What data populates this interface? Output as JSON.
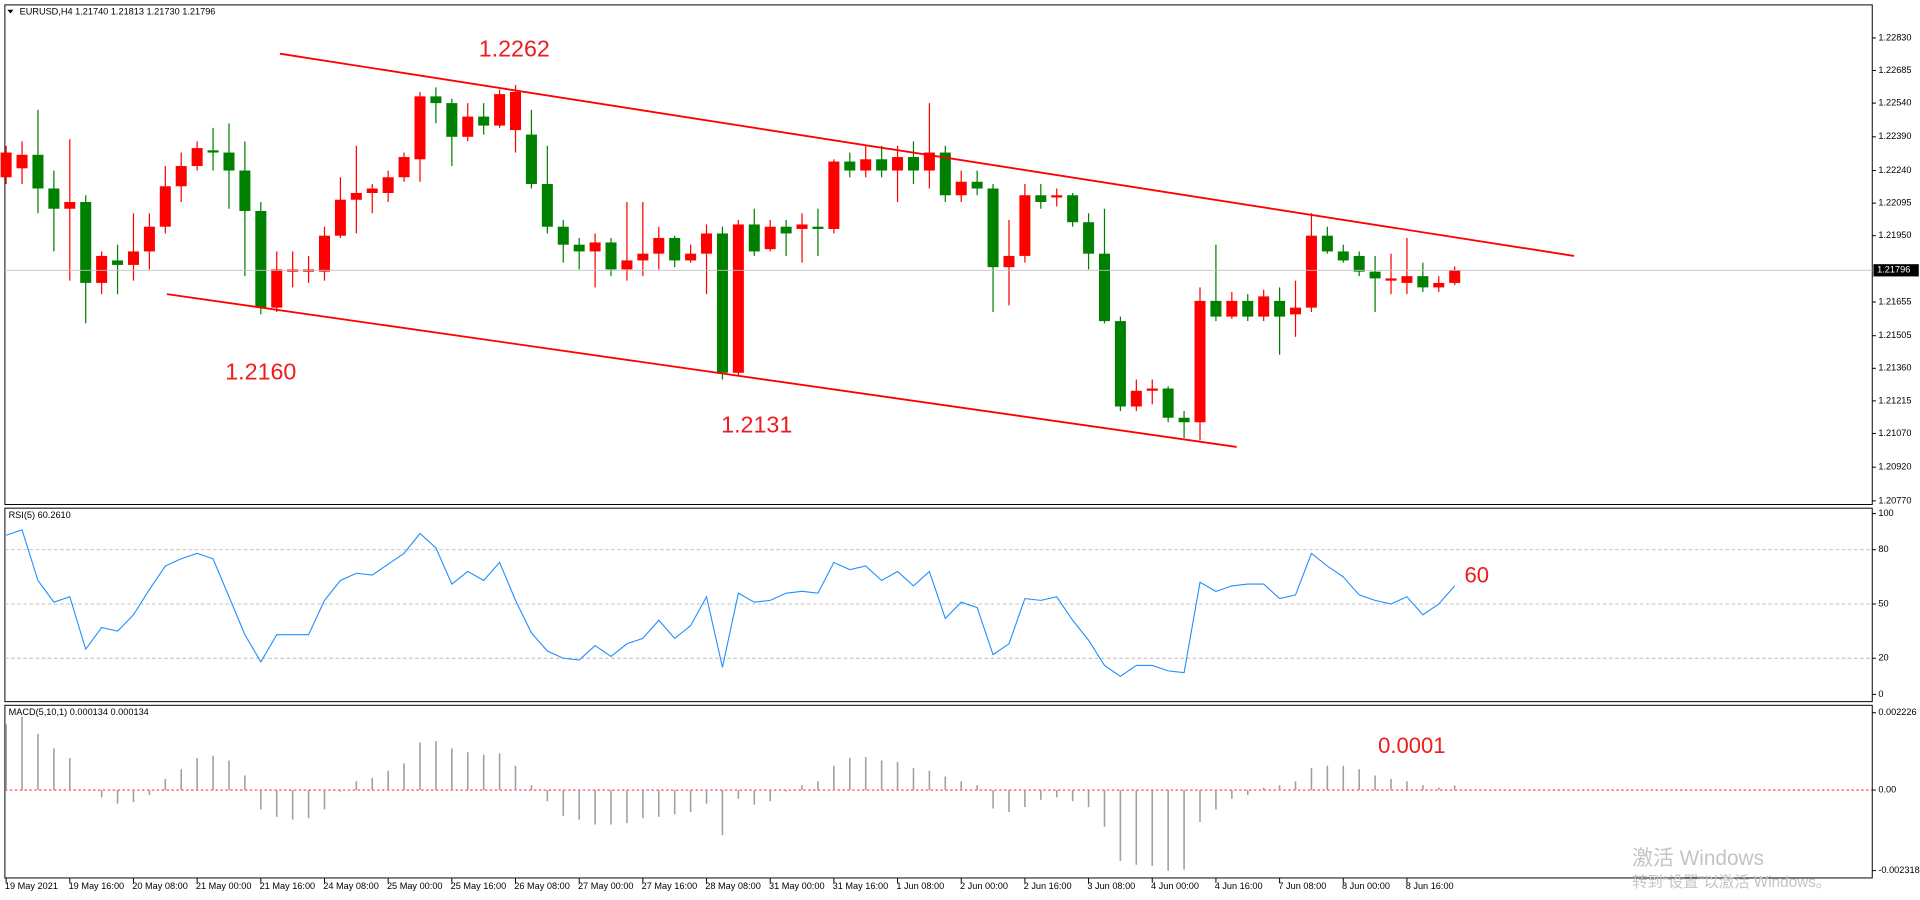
{
  "chart_data": [
    {
      "type": "candlestick",
      "title": "EURUSD,H4  1.21740 1.21813 1.21730 1.21796",
      "categories": [
        "19 May 2021",
        null,
        null,
        null,
        "19 May 16:00",
        null,
        null,
        null,
        "20 May 08:00",
        null,
        null,
        null,
        "21 May 00:00",
        null,
        null,
        null,
        "21 May 16:00",
        null,
        null,
        null,
        "24 May 08:00",
        null,
        null,
        null,
        "25 May 00:00",
        null,
        null,
        null,
        "25 May 16:00",
        null,
        null,
        null,
        "26 May 08:00",
        null,
        null,
        null,
        "27 May 00:00",
        null,
        null,
        null,
        "27 May 16:00",
        null,
        null,
        null,
        "28 May 08:00",
        null,
        null,
        null,
        "31 May 00:00",
        null,
        null,
        null,
        "31 May 16:00",
        null,
        null,
        null,
        "1 Jun 08:00",
        null,
        null,
        null,
        "2 Jun 00:00",
        null,
        null,
        null,
        "2 Jun 16:00",
        null,
        null,
        null,
        "3 Jun 08:00",
        null,
        null,
        null,
        "4 Jun 00:00",
        null,
        null,
        null,
        "4 Jun 16:00",
        null,
        null,
        null,
        "7 Jun 08:00",
        null,
        null,
        null,
        "8 Jun 00:00",
        null,
        null,
        null,
        "8 Jun 16:00",
        null,
        null,
        null
      ],
      "open": [
        1.2221,
        1.2225,
        1.2231,
        1.2216,
        1.2207,
        1.221,
        1.2174,
        1.2184,
        1.2182,
        1.2188,
        1.2199,
        1.2217,
        1.2226,
        1.2233,
        1.2232,
        1.2224,
        1.2206,
        1.2163,
        1.2179,
        1.2179,
        1.2179,
        1.2195,
        1.2211,
        1.2214,
        1.2214,
        1.2221,
        1.2229,
        1.2257,
        1.2254,
        1.2239,
        1.2248,
        1.2244,
        1.2242,
        1.224,
        1.2218,
        1.2199,
        1.2191,
        1.2188,
        1.2192,
        1.218,
        1.2184,
        1.2187,
        1.2194,
        1.2184,
        1.2187,
        1.2196,
        1.2134,
        1.22,
        1.2189,
        1.2199,
        1.2198,
        1.2199,
        1.2198,
        1.2228,
        1.2224,
        1.2229,
        1.2224,
        1.223,
        1.2224,
        1.2232,
        1.2213,
        1.2219,
        1.2216,
        1.2181,
        1.2186,
        1.2213,
        1.2212,
        1.2213,
        1.2201,
        1.2187,
        1.2157,
        1.2119,
        1.2126,
        1.2127,
        1.2114,
        1.2112,
        1.2166,
        1.2159,
        1.2166,
        1.2159,
        1.2166,
        1.216,
        1.2163,
        1.2195,
        1.2188,
        1.2186,
        1.2179,
        1.2175,
        1.2174,
        1.2177,
        1.2172,
        1.2174
      ],
      "high": [
        1.2235,
        1.2237,
        1.2251,
        1.2224,
        1.2238,
        1.2213,
        1.2188,
        1.2191,
        1.2205,
        1.2205,
        1.2226,
        1.2232,
        1.2237,
        1.2243,
        1.2245,
        1.2237,
        1.221,
        1.2188,
        1.2188,
        1.2186,
        1.2199,
        1.2221,
        1.2235,
        1.2218,
        1.2224,
        1.2232,
        1.2259,
        1.2261,
        1.2256,
        1.2254,
        1.2254,
        1.226,
        1.2262,
        1.2251,
        1.2235,
        1.2202,
        1.2194,
        1.2196,
        1.2194,
        1.221,
        1.221,
        1.2199,
        1.2195,
        1.2191,
        1.22,
        1.2199,
        1.2202,
        1.2207,
        1.2202,
        1.2202,
        1.2205,
        1.2207,
        1.2229,
        1.2232,
        1.2235,
        1.2235,
        1.2235,
        1.2237,
        1.2254,
        1.2235,
        1.2224,
        1.2224,
        1.2218,
        1.2202,
        1.2218,
        1.2218,
        1.2216,
        1.2214,
        1.2205,
        1.2207,
        1.2159,
        1.2131,
        1.2131,
        1.2128,
        1.2117,
        1.2172,
        1.2191,
        1.217,
        1.2169,
        1.2171,
        1.2172,
        1.2175,
        1.2205,
        1.2199,
        1.2191,
        1.2188,
        1.2186,
        1.2187,
        1.2194,
        1.2183,
        1.2177,
        1.21813
      ],
      "low": [
        1.2218,
        1.2218,
        1.2205,
        1.2188,
        1.2175,
        1.2156,
        1.2169,
        1.2169,
        1.2175,
        1.218,
        1.2196,
        1.221,
        1.2224,
        1.2224,
        1.2207,
        1.2177,
        1.216,
        1.2161,
        1.2172,
        1.2174,
        1.2175,
        1.2194,
        1.2196,
        1.2205,
        1.221,
        1.2219,
        1.2219,
        1.2245,
        1.2226,
        1.2237,
        1.224,
        1.2243,
        1.2232,
        1.2216,
        1.2196,
        1.2183,
        1.218,
        1.2172,
        1.2177,
        1.2175,
        1.2177,
        1.218,
        1.2181,
        1.2183,
        1.2169,
        1.2131,
        1.2133,
        1.2186,
        1.2188,
        1.2186,
        1.2183,
        1.2186,
        1.2196,
        1.2221,
        1.2221,
        1.2221,
        1.221,
        1.2218,
        1.2216,
        1.221,
        1.221,
        1.2213,
        1.2161,
        1.2164,
        1.2183,
        1.2207,
        1.2208,
        1.2199,
        1.218,
        1.2156,
        1.2117,
        1.2117,
        1.212,
        1.2112,
        1.2105,
        1.2104,
        1.2157,
        1.2158,
        1.2157,
        1.2157,
        1.2142,
        1.215,
        1.2161,
        1.2187,
        1.2183,
        1.2177,
        1.2161,
        1.2169,
        1.2169,
        1.217,
        1.217,
        1.2173
      ],
      "close": [
        1.2232,
        1.2231,
        1.2216,
        1.2207,
        1.221,
        1.2174,
        1.2186,
        1.2182,
        1.2188,
        1.2199,
        1.2217,
        1.2226,
        1.2234,
        1.2232,
        1.2224,
        1.2206,
        1.2163,
        1.218,
        1.218,
        1.218,
        1.2195,
        1.2211,
        1.2214,
        1.2216,
        1.2221,
        1.223,
        1.2257,
        1.2254,
        1.2239,
        1.2248,
        1.2244,
        1.2258,
        1.2259,
        1.2218,
        1.2199,
        1.2191,
        1.2188,
        1.2192,
        1.218,
        1.2184,
        1.2187,
        1.2194,
        1.2184,
        1.2187,
        1.2196,
        1.2134,
        1.22,
        1.2188,
        1.2199,
        1.2196,
        1.22,
        1.2198,
        1.2228,
        1.2224,
        1.2229,
        1.2224,
        1.223,
        1.2224,
        1.2232,
        1.2213,
        1.2219,
        1.2216,
        1.2181,
        1.2186,
        1.2213,
        1.221,
        1.2213,
        1.2201,
        1.2187,
        1.2157,
        1.2119,
        1.2126,
        1.2127,
        1.2114,
        1.2112,
        1.2166,
        1.2159,
        1.2166,
        1.2159,
        1.2168,
        1.2159,
        1.2163,
        1.2195,
        1.2188,
        1.2184,
        1.2179,
        1.2176,
        1.2176,
        1.2177,
        1.2172,
        1.2174,
        1.21796
      ],
      "up_color": "#ff0000",
      "down_color": "#008000",
      "ylim": [
        1.20754,
        1.22977
      ],
      "yticks": [
        {
          "value": 1.2283,
          "label": "1.22830"
        },
        1.22685,
        {
          "value": 1.2254,
          "label": "1.22540"
        },
        {
          "value": 1.2239,
          "label": "1.22390"
        },
        {
          "value": 1.2224,
          "label": "1.22240"
        },
        1.22095,
        {
          "value": 1.2195,
          "label": "1.21950"
        },
        1.21655,
        1.21505,
        {
          "value": 1.2136,
          "label": "1.21360"
        },
        1.21215,
        {
          "value": 1.2107,
          "label": "1.21070"
        },
        {
          "value": 1.2092,
          "label": "1.20920"
        },
        {
          "value": 1.2077,
          "label": "1.20770"
        }
      ],
      "current_price": {
        "value": 1.21796,
        "label": "1.21796"
      },
      "trendlines": [
        {
          "x": [
            17.2,
            98.5
          ],
          "y": [
            1.2276,
            1.2186
          ]
        },
        {
          "x": [
            10.1,
            77.3
          ],
          "y": [
            1.2169,
            1.2101
          ]
        }
      ],
      "trendline_color": "#ff0000",
      "annotations": [
        "1.2262",
        "1.2160",
        "1.2131"
      ]
    },
    {
      "type": "line",
      "title": "RSI(5) 60.2610",
      "values": [
        88,
        91,
        63,
        51,
        54,
        25,
        37,
        35,
        44,
        58,
        71,
        75,
        78,
        75,
        54,
        33,
        18,
        33,
        33,
        33,
        52,
        63,
        67,
        66,
        72,
        78,
        89,
        81,
        61,
        68,
        63,
        73,
        52,
        34,
        24,
        20,
        19,
        27,
        21,
        28,
        31,
        41,
        31,
        38,
        54,
        15,
        56,
        51,
        52,
        56,
        57,
        56,
        73,
        69,
        71,
        63,
        68,
        60,
        68,
        42,
        51,
        48,
        22,
        28,
        53,
        52,
        54,
        41,
        30,
        16,
        10,
        16,
        16,
        13,
        12,
        62,
        57,
        60,
        61,
        61,
        53,
        55,
        78,
        71,
        65,
        55,
        52,
        50,
        54,
        44,
        50,
        60
      ],
      "color": "#1e90ff",
      "ylim": [
        -4,
        103
      ],
      "yticks": [
        0,
        20,
        50,
        80,
        100
      ],
      "grid": "dashed",
      "annotations": [
        "60"
      ]
    },
    {
      "type": "bar",
      "title": "MACD(5,10,1) 0.000134 0.000134",
      "values": [
        0.0019,
        0.00211,
        0.00162,
        0.0012,
        0.00092,
        0,
        -0.00021,
        -0.00039,
        -0.00035,
        -0.00014,
        0.00032,
        0.0006,
        0.00092,
        0.00099,
        0.00085,
        0.00042,
        -0.00056,
        -0.00077,
        -0.00085,
        -0.00081,
        -0.00056,
        -4e-05,
        0.00025,
        0.00035,
        0.00056,
        0.00077,
        0.00137,
        0.00141,
        0.0012,
        0.00109,
        0.00102,
        0.00106,
        0.0007,
        0.00014,
        -0.00032,
        -0.00074,
        -0.00085,
        -0.00099,
        -0.00099,
        -0.00095,
        -0.00081,
        -0.00077,
        -0.0007,
        -0.00063,
        -0.00039,
        -0.0013,
        -0.00025,
        -0.00042,
        -0.00032,
        -4e-05,
        0.00014,
        0.00025,
        0.0007,
        0.00092,
        0.00095,
        0.00085,
        0.00081,
        0.00063,
        0.00056,
        0.00039,
        0.00025,
        0.00014,
        -0.00053,
        -0.00063,
        -0.00049,
        -0.00028,
        -0.00021,
        -0.00032,
        -0.00049,
        -0.00106,
        -0.00204,
        -0.00215,
        -0.00218,
        -0.00232,
        -0.00229,
        -0.00092,
        -0.00056,
        -0.00025,
        -0.00014,
        7e-05,
        0.00014,
        0.00025,
        0.00063,
        0.0007,
        0.0007,
        0.0006,
        0.00042,
        0.00032,
        0.00025,
        0.00014,
        7e-05,
        0.000134
      ],
      "color": "#a0a0a0",
      "ylim": [
        -0.00253,
        0.00244
      ],
      "yticks": [
        -0.002318,
        {
          "value": 0,
          "label": "0.00"
        },
        0.002226
      ],
      "zero_line_color": "#ff0000",
      "annotations": [
        "0.0001"
      ]
    }
  ],
  "watermark": [
    "激活 Windows",
    "转到“设置”以激活 Windows。"
  ]
}
